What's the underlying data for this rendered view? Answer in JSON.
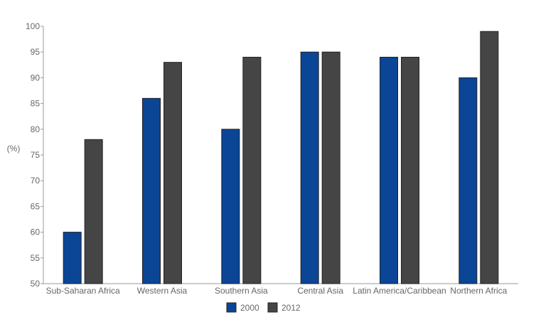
{
  "chart_data": {
    "type": "bar",
    "ylabel": "(%)",
    "ylim": [
      50,
      100
    ],
    "yticks": [
      50,
      55,
      60,
      65,
      70,
      75,
      80,
      85,
      90,
      95,
      100
    ],
    "categories": [
      "Sub-Saharan Africa",
      "Western Asia",
      "Southern Asia",
      "Central Asia",
      "Latin America/Caribbean",
      "Northern Africa"
    ],
    "series": [
      {
        "name": "2000",
        "color": "#0b4596",
        "values": [
          60,
          86,
          80,
          95,
          94,
          90
        ]
      },
      {
        "name": "2012",
        "color": "#454545",
        "values": [
          78,
          93,
          94,
          95,
          94,
          99
        ]
      }
    ],
    "grid": false,
    "legend": "bottom"
  }
}
